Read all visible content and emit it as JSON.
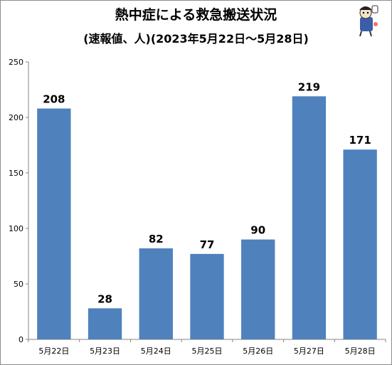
{
  "chart_data": {
    "type": "bar",
    "title": "熱中症による救急搬送状況",
    "subtitle": "(速報値、人)(2023年5月22日〜5月28日)",
    "categories": [
      "5月22日",
      "5月23日",
      "5月24日",
      "5月25日",
      "5月26日",
      "5月27日",
      "5月28日"
    ],
    "values": [
      208,
      28,
      82,
      77,
      90,
      219,
      171
    ],
    "ylim": [
      0,
      250
    ],
    "yticks": [
      0,
      50,
      100,
      150,
      200,
      250
    ],
    "xlabel": "",
    "ylabel": "",
    "grid": false,
    "legend": "none",
    "bar_color": "#4f81bd"
  }
}
